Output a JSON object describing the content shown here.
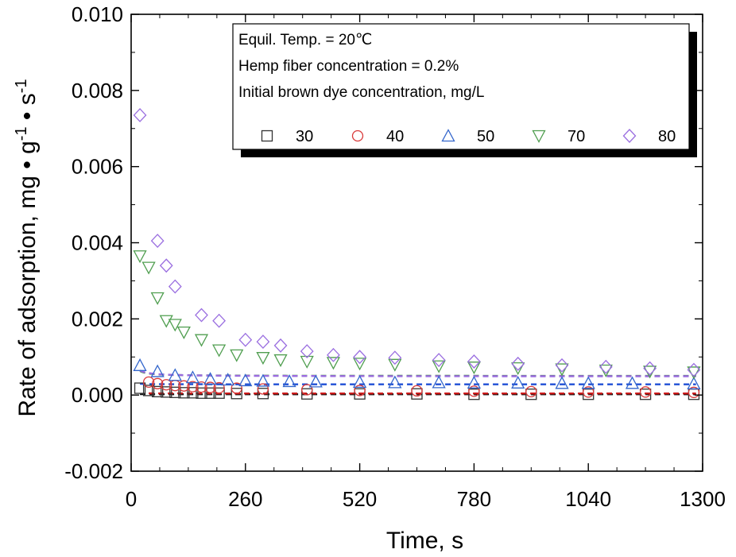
{
  "chart_data": {
    "type": "scatter",
    "title": "",
    "xlabel": "Time, s",
    "ylabel_parts": [
      "Rate of adsorption, mg",
      "g",
      "-1",
      "s",
      "-1"
    ],
    "xlim": [
      0,
      1300
    ],
    "ylim": [
      -0.002,
      0.01
    ],
    "x_ticks": [
      0,
      260,
      520,
      780,
      1040,
      1300
    ],
    "x_tick_labels": [
      "0",
      "260",
      "520",
      "780",
      "1040",
      "1300"
    ],
    "y_ticks": [
      -0.002,
      0.0,
      0.002,
      0.004,
      0.006,
      0.008,
      0.01
    ],
    "y_tick_labels": [
      "-0.002",
      "0.000",
      "0.002",
      "0.004",
      "0.006",
      "0.008",
      "0.010"
    ],
    "grid": false,
    "legend": {
      "placement": "top-right",
      "lines": [
        "Equil. Temp. = 20℃",
        "Hemp fiber concentration = 0.2%",
        "Initial brown dye concentration, mg/L"
      ]
    },
    "series": [
      {
        "name": "30",
        "marker": "square",
        "color": "#333333",
        "fit_color": "#111111",
        "x": [
          20,
          40,
          60,
          80,
          100,
          120,
          140,
          160,
          180,
          200,
          240,
          300,
          400,
          520,
          650,
          780,
          910,
          1040,
          1170,
          1280
        ],
        "y": [
          0.00018,
          0.00012,
          9e-05,
          8e-05,
          7e-05,
          6e-05,
          6e-05,
          5e-05,
          5e-05,
          5e-05,
          4e-05,
          4e-05,
          3e-05,
          3e-05,
          3e-05,
          2e-05,
          2e-05,
          2e-05,
          2e-05,
          2e-05
        ]
      },
      {
        "name": "40",
        "marker": "circle",
        "color": "#d93a3a",
        "fit_color": "#cc1a1a",
        "x": [
          40,
          60,
          80,
          100,
          120,
          140,
          160,
          180,
          200,
          240,
          300,
          400,
          520,
          650,
          780,
          910,
          1040,
          1170,
          1280
        ],
        "y": [
          0.00034,
          0.0003,
          0.00027,
          0.00025,
          0.00024,
          0.00022,
          0.00021,
          0.0002,
          0.00019,
          0.00018,
          0.00016,
          0.00014,
          0.00012,
          0.00011,
          0.0001,
          9e-05,
          8e-05,
          8e-05,
          7e-05
        ]
      },
      {
        "name": "50",
        "marker": "triangle-up",
        "color": "#3366cc",
        "fit_color": "#1f4fd6",
        "x": [
          20,
          60,
          100,
          140,
          180,
          220,
          260,
          300,
          360,
          420,
          520,
          600,
          700,
          780,
          880,
          980,
          1040,
          1140,
          1280
        ],
        "y": [
          0.00078,
          0.00062,
          0.00052,
          0.00046,
          0.00042,
          0.0004,
          0.00038,
          0.00037,
          0.00036,
          0.00035,
          0.00034,
          0.00033,
          0.00033,
          0.00032,
          0.00032,
          0.00031,
          0.00031,
          0.00031,
          0.0003
        ]
      },
      {
        "name": "70",
        "marker": "triangle-down",
        "color": "#4f9e4f",
        "fit_color": "#3a8a3a",
        "x": [
          20,
          40,
          60,
          80,
          100,
          120,
          160,
          200,
          240,
          300,
          340,
          400,
          460,
          520,
          600,
          700,
          780,
          880,
          980,
          1080,
          1180,
          1280
        ],
        "y": [
          0.00365,
          0.00335,
          0.00255,
          0.00195,
          0.00185,
          0.00165,
          0.00145,
          0.00118,
          0.00105,
          0.00098,
          0.00092,
          0.00088,
          0.00085,
          0.00083,
          0.0008,
          0.00076,
          0.00073,
          0.00071,
          0.00068,
          0.00065,
          0.00062,
          0.0006
        ]
      },
      {
        "name": "80",
        "marker": "diamond",
        "color": "#9a6ee0",
        "fit_color": "#9b6be0",
        "x": [
          20,
          60,
          80,
          100,
          160,
          200,
          260,
          300,
          340,
          400,
          460,
          520,
          600,
          700,
          780,
          880,
          980,
          1080,
          1180,
          1280
        ],
        "y": [
          0.00735,
          0.00405,
          0.0034,
          0.00285,
          0.0021,
          0.00195,
          0.00145,
          0.0014,
          0.0013,
          0.00115,
          0.00105,
          0.001,
          0.00098,
          0.00092,
          0.00088,
          0.00082,
          0.00078,
          0.00074,
          0.0007,
          0.00066
        ]
      }
    ],
    "fits": [
      {
        "series": "30",
        "a": 3.5e-06,
        "b": 2e-05,
        "t0": 0
      },
      {
        "series": "40",
        "a": 1.2e-05,
        "b": 4e-05,
        "t0": 5
      },
      {
        "series": "50",
        "a": 1.8e-05,
        "b": 0.00028,
        "t0": 0
      },
      {
        "series": "70",
        "a": 0.000132,
        "b": 0.0005,
        "t0": 0
      },
      {
        "series": "80",
        "a": 0.0002,
        "b": 0.00049,
        "t0": -6
      }
    ]
  }
}
